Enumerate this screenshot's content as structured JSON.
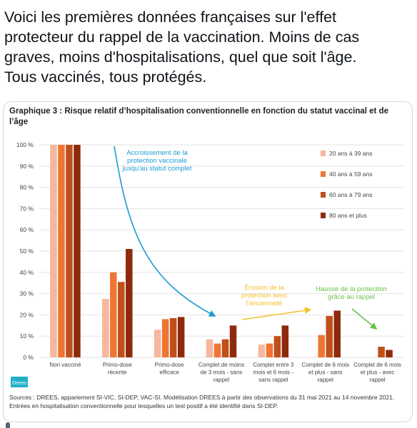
{
  "tweet": {
    "text_lines": [
      "Voici les premières données françaises sur l'effet",
      "protecteur du rappel de la vaccination. Moins de cas",
      "graves, moins d'hospitalisations, quel que soit l'âge.",
      "Tous vaccinés, tous protégés."
    ]
  },
  "figure": {
    "title_lines": [
      "Graphique 3 : Risque relatif d’hospitalisation conventionnelle en fonction du statut vaccinal et de",
      "l’âge"
    ],
    "logo_text": "Drees",
    "source_lines": [
      "Sources : DREES, appariement SI-VIC, SI-DEP, VAC-SI. Modélisation DREES à partir des observations du 31 mai 2021 au 14 novembre 2021.",
      "Entrées en hospitalisation conventionnelle pour lesquelles un test positif a été identifié dans SI-DEP."
    ]
  },
  "colors": {
    "series": [
      "#f5b79d",
      "#ee7634",
      "#c0501a",
      "#8e2a0c"
    ],
    "blue_arrow": "#1c9bd3",
    "yellow_arrow": "#f2c12e",
    "green_arrow": "#6cc04a"
  },
  "chart_data": {
    "type": "bar",
    "ylim": [
      0,
      100
    ],
    "y_ticks": [
      "0 %",
      "10 %",
      "20 %",
      "30 %",
      "40 %",
      "50 %",
      "60 %",
      "70 %",
      "80 %",
      "90 %",
      "100 %"
    ],
    "categories": [
      [
        "Non vacciné"
      ],
      [
        "Primo-dose",
        "récente"
      ],
      [
        "Primo-dose",
        "efficace"
      ],
      [
        "Complet de moins",
        "de 3 mois - sans",
        "rappel"
      ],
      [
        "Complet entre 3",
        "mois et 6 mois -",
        "sans rappel"
      ],
      [
        "Complet de 6 mois",
        "et plus - sans",
        "rappel"
      ],
      [
        "Complet de 6 mois",
        "et plus - avec",
        "rappel"
      ]
    ],
    "series": [
      {
        "name": "20 ans à 39 ans",
        "values": [
          100,
          27.5,
          13,
          8.5,
          6,
          0,
          0
        ]
      },
      {
        "name": "40 ans à 59 ans",
        "values": [
          100,
          40,
          18,
          6.5,
          6.5,
          10.5,
          0
        ]
      },
      {
        "name": "60 ans à 79 ans",
        "values": [
          100,
          35.5,
          18.5,
          8.5,
          10,
          19.5,
          5
        ]
      },
      {
        "name": "80 ans et plus",
        "values": [
          100,
          51,
          19,
          15,
          15,
          22,
          3.5
        ]
      }
    ],
    "annotations": [
      {
        "lines": [
          "Accroissement de la",
          "protection vaccinale",
          "jusqu'au statut complet"
        ],
        "color": "blue"
      },
      {
        "lines": [
          "Érosion de la",
          "protection avec",
          "l'ancienneté"
        ],
        "color": "yellow"
      },
      {
        "lines": [
          "Hausse de la protection",
          "grâce au rappel"
        ],
        "color": "green"
      }
    ]
  }
}
